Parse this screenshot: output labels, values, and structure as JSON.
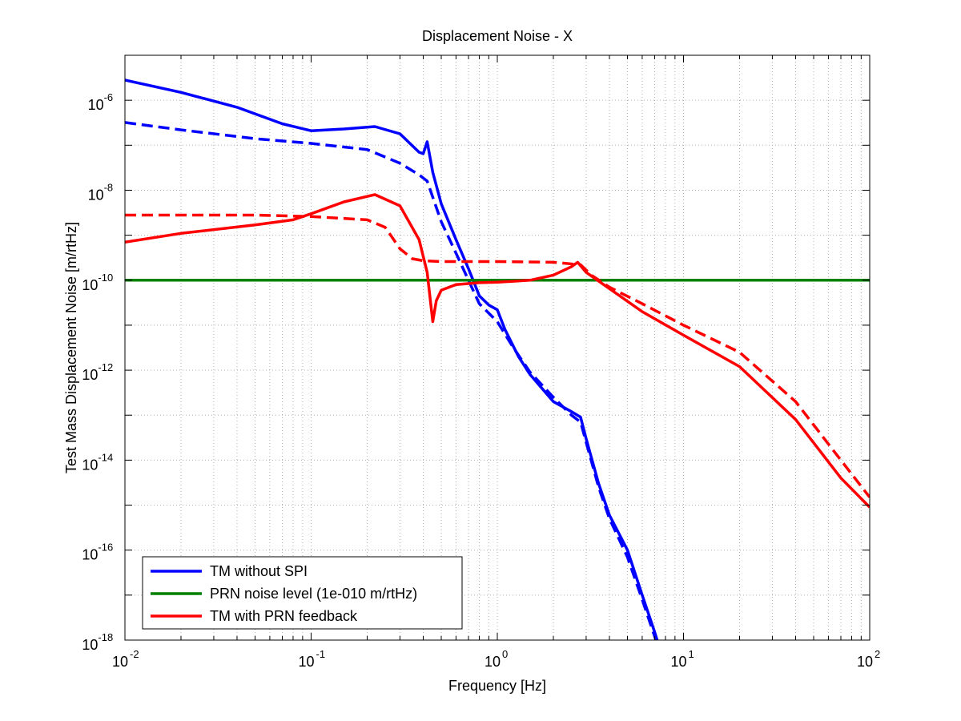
{
  "chart_data": {
    "type": "line",
    "title": "Displacement Noise - X",
    "xlabel": "Frequency [Hz]",
    "ylabel": "Test Mass Displacement Noise [m/rtHz]",
    "xscale": "log",
    "yscale": "log",
    "xlim": [
      0.01,
      100
    ],
    "ylim": [
      1e-18,
      1e-05
    ],
    "grid": true,
    "legend_position": "lower-left",
    "x_ticks": [
      {
        "value": 0.01,
        "base": "10",
        "exp": "-2"
      },
      {
        "value": 0.1,
        "base": "10",
        "exp": "-1"
      },
      {
        "value": 1,
        "base": "10",
        "exp": "0"
      },
      {
        "value": 10,
        "base": "10",
        "exp": "1"
      },
      {
        "value": 100,
        "base": "10",
        "exp": "2"
      }
    ],
    "y_ticks": [
      {
        "value": 1e-18,
        "base": "10",
        "exp": "-18"
      },
      {
        "value": 1e-16,
        "base": "10",
        "exp": "-16"
      },
      {
        "value": 1e-14,
        "base": "10",
        "exp": "-14"
      },
      {
        "value": 1e-12,
        "base": "10",
        "exp": "-12"
      },
      {
        "value": 1e-10,
        "base": "10",
        "exp": "-10"
      },
      {
        "value": 1e-08,
        "base": "10",
        "exp": "-8"
      },
      {
        "value": 1e-06,
        "base": "10",
        "exp": "-6"
      }
    ],
    "legend": [
      {
        "label": "TM without SPI",
        "color": "#0000ff"
      },
      {
        "label": "PRN noise level (1e-010 m/rtHz)",
        "color": "#008000"
      },
      {
        "label": "TM with PRN feedback",
        "color": "#ff0000"
      }
    ],
    "series": [
      {
        "color": "#0000ff",
        "style": "solid",
        "points": [
          [
            0.01,
            2.8e-06
          ],
          [
            0.02,
            1.5e-06
          ],
          [
            0.04,
            7e-07
          ],
          [
            0.07,
            3e-07
          ],
          [
            0.1,
            2.1e-07
          ],
          [
            0.15,
            2.3e-07
          ],
          [
            0.22,
            2.6e-07
          ],
          [
            0.3,
            1.8e-07
          ],
          [
            0.38,
            7e-08
          ],
          [
            0.4,
            6.5e-08
          ],
          [
            0.42,
            1.2e-07
          ],
          [
            0.45,
            2.5e-08
          ],
          [
            0.5,
            5e-09
          ],
          [
            0.6,
            8e-10
          ],
          [
            0.7,
            1.8e-10
          ],
          [
            0.8,
            4.5e-11
          ],
          [
            0.9,
            2.8e-11
          ],
          [
            1.0,
            2.2e-11
          ],
          [
            1.1,
            8e-12
          ],
          [
            1.3,
            2e-12
          ],
          [
            1.5,
            8e-13
          ],
          [
            2.0,
            2e-13
          ],
          [
            2.5,
            1.2e-13
          ],
          [
            2.8,
            9e-14
          ],
          [
            3.0,
            3e-14
          ],
          [
            3.5,
            3e-15
          ],
          [
            4.0,
            6e-16
          ],
          [
            5.0,
            1e-16
          ],
          [
            6.0,
            1e-17
          ],
          [
            7.0,
            1.5e-18
          ],
          [
            7.5,
            6e-19
          ]
        ]
      },
      {
        "color": "#0000ff",
        "style": "dashed",
        "points": [
          [
            0.01,
            3.2e-07
          ],
          [
            0.02,
            2.2e-07
          ],
          [
            0.05,
            1.4e-07
          ],
          [
            0.1,
            1.1e-07
          ],
          [
            0.2,
            8e-08
          ],
          [
            0.3,
            4e-08
          ],
          [
            0.38,
            2.2e-08
          ],
          [
            0.42,
            1.6e-08
          ],
          [
            0.45,
            7e-09
          ],
          [
            0.5,
            2e-09
          ],
          [
            0.6,
            4e-10
          ],
          [
            0.7,
            1e-10
          ],
          [
            0.8,
            3e-11
          ],
          [
            1.0,
            1.2e-11
          ],
          [
            1.2,
            3.5e-12
          ],
          [
            1.5,
            9e-13
          ],
          [
            2.0,
            2.5e-13
          ],
          [
            2.5,
            1e-13
          ],
          [
            2.8,
            7e-14
          ],
          [
            3.0,
            2.5e-14
          ],
          [
            3.5,
            2.5e-15
          ],
          [
            4.0,
            5e-16
          ],
          [
            5.0,
            7e-17
          ],
          [
            6.0,
            8e-18
          ],
          [
            7.0,
            1.2e-18
          ],
          [
            7.5,
            5e-19
          ]
        ]
      },
      {
        "color": "#008000",
        "style": "solid",
        "points": [
          [
            0.01,
            1e-10
          ],
          [
            100,
            1e-10
          ]
        ]
      },
      {
        "color": "#ff0000",
        "style": "solid",
        "points": [
          [
            0.01,
            7e-10
          ],
          [
            0.02,
            1.1e-09
          ],
          [
            0.05,
            1.7e-09
          ],
          [
            0.08,
            2.2e-09
          ],
          [
            0.1,
            3e-09
          ],
          [
            0.15,
            5.5e-09
          ],
          [
            0.22,
            8e-09
          ],
          [
            0.3,
            4.5e-09
          ],
          [
            0.38,
            8e-10
          ],
          [
            0.42,
            1.5e-10
          ],
          [
            0.45,
            1.2e-11
          ],
          [
            0.47,
            3.5e-11
          ],
          [
            0.5,
            6e-11
          ],
          [
            0.6,
            8e-11
          ],
          [
            0.8,
            8.8e-11
          ],
          [
            1.0,
            9e-11
          ],
          [
            1.5,
            1e-10
          ],
          [
            2.0,
            1.3e-10
          ],
          [
            2.5,
            2e-10
          ],
          [
            2.7,
            2.5e-10
          ],
          [
            3.0,
            1.5e-10
          ],
          [
            4.0,
            6.5e-11
          ],
          [
            6.0,
            2e-11
          ],
          [
            10,
            6e-12
          ],
          [
            20,
            1.2e-12
          ],
          [
            40,
            8e-14
          ],
          [
            70,
            4e-15
          ],
          [
            100,
            9e-16
          ]
        ]
      },
      {
        "color": "#ff0000",
        "style": "dashed",
        "points": [
          [
            0.01,
            2.8e-09
          ],
          [
            0.05,
            2.8e-09
          ],
          [
            0.1,
            2.6e-09
          ],
          [
            0.2,
            2.2e-09
          ],
          [
            0.25,
            1.5e-09
          ],
          [
            0.3,
            5e-10
          ],
          [
            0.35,
            3e-10
          ],
          [
            0.4,
            2.7e-10
          ],
          [
            0.5,
            2.6e-10
          ],
          [
            1.0,
            2.6e-10
          ],
          [
            2.0,
            2.5e-10
          ],
          [
            2.8,
            2.2e-10
          ],
          [
            3.2,
            1.3e-10
          ],
          [
            4.0,
            7e-11
          ],
          [
            6.0,
            3e-11
          ],
          [
            10,
            1e-11
          ],
          [
            20,
            2.5e-12
          ],
          [
            40,
            2e-13
          ],
          [
            70,
            1e-14
          ],
          [
            100,
            1.5e-15
          ]
        ]
      }
    ]
  }
}
